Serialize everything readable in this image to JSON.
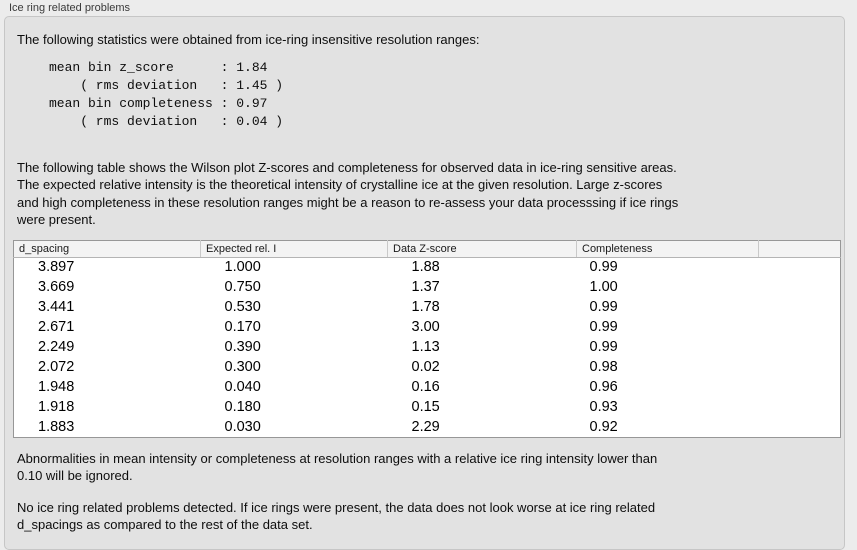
{
  "panel": {
    "title": "Ice ring related problems",
    "intro": "The following statistics were obtained from ice-ring insensitive resolution ranges:",
    "stats_block": "mean bin z_score      : 1.84\n    ( rms deviation   : 1.45 )\nmean bin completeness : 0.97\n    ( rms deviation   : 0.04 )",
    "table_description": "The following table shows the Wilson plot Z-scores and completeness for observed data in ice-ring sensitive areas.\nThe expected relative intensity is the theoretical intensity of crystalline ice at the given resolution. Large z-scores\nand high completeness in these resolution ranges might be a reason to re-assess your data processsing if ice rings\nwere present.",
    "ignore_note": "Abnormalities in mean intensity or completeness at resolution ranges with a relative ice ring intensity lower than\n0.10 will be ignored.",
    "conclusion": "No ice ring related problems detected. If ice rings were present, the data does not look worse at ice ring related\nd_spacings as compared to the rest of the data set."
  },
  "table": {
    "columns": [
      "d_spacing",
      "Expected rel. I",
      "Data Z-score",
      "Completeness",
      ""
    ],
    "rows": [
      [
        "3.897",
        "1.000",
        "1.88",
        "0.99"
      ],
      [
        "3.669",
        "0.750",
        "1.37",
        "1.00"
      ],
      [
        "3.441",
        "0.530",
        "1.78",
        "0.99"
      ],
      [
        "2.671",
        "0.170",
        "3.00",
        "0.99"
      ],
      [
        "2.249",
        "0.390",
        "1.13",
        "0.99"
      ],
      [
        "2.072",
        "0.300",
        "0.02",
        "0.98"
      ],
      [
        "1.948",
        "0.040",
        "0.16",
        "0.96"
      ],
      [
        "1.918",
        "0.180",
        "0.15",
        "0.93"
      ],
      [
        "1.883",
        "0.030",
        "2.29",
        "0.92"
      ]
    ]
  }
}
